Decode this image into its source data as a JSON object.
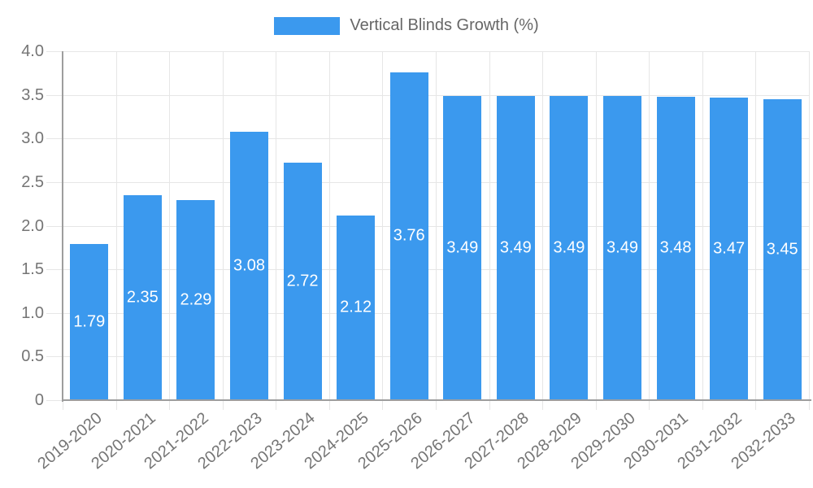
{
  "legend": {
    "label": "Vertical Blinds Growth (%)"
  },
  "chart_data": {
    "type": "bar",
    "title": "Vertical Blinds Growth (%)",
    "series_name": "Vertical Blinds Growth (%)",
    "categories": [
      "2019-2020",
      "2020-2021",
      "2021-2022",
      "2022-2023",
      "2023-2024",
      "2024-2025",
      "2025-2026",
      "2026-2027",
      "2027-2028",
      "2028-2029",
      "2029-2030",
      "2030-2031",
      "2031-2032",
      "2032-2033"
    ],
    "values": [
      1.79,
      2.35,
      2.29,
      3.08,
      2.72,
      2.12,
      3.76,
      3.49,
      3.49,
      3.49,
      3.49,
      3.48,
      3.47,
      3.45
    ],
    "values_display": [
      "1.79",
      "2.35",
      "2.29",
      "3.08",
      "2.72",
      "2.12",
      "3.76",
      "3.49",
      "3.49",
      "3.49",
      "3.49",
      "3.48",
      "3.47",
      "3.45"
    ],
    "xlabel": "",
    "ylabel": "",
    "ylim": [
      0,
      4.0
    ],
    "ytick_step": 0.5,
    "ytick_labels": [
      "0",
      "0.5",
      "1.0",
      "1.5",
      "2.0",
      "2.5",
      "3.0",
      "3.5",
      "4.0"
    ],
    "grid": true,
    "legend_position": "top",
    "bar_color": "#3b99ee",
    "gridline_color": "#e6e6e6",
    "axis_line_color": "#9e9e9e",
    "tick_label_color": "#757575",
    "value_label_color": "#ffffff",
    "legend_label_color": "#666666"
  }
}
